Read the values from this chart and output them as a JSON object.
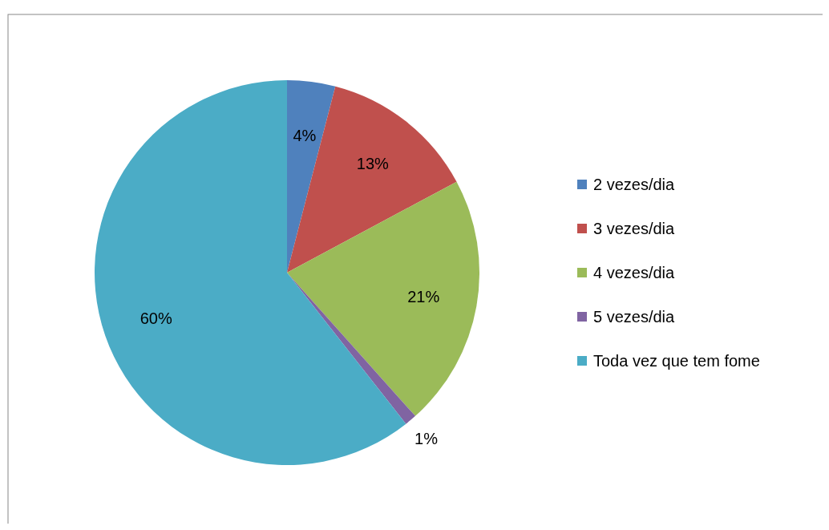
{
  "chart_data": {
    "type": "pie",
    "categories": [
      "2 vezes/dia",
      "3 vezes/dia",
      "4 vezes/dia",
      "5 vezes/dia",
      "Toda vez que tem fome"
    ],
    "values": [
      4,
      13,
      21,
      1,
      60
    ],
    "colors": [
      "#4f81bd",
      "#c0504d",
      "#9bbb59",
      "#8064a2",
      "#4bacc6"
    ],
    "value_labels": [
      "4%",
      "13%",
      "21%",
      "1%",
      "60%"
    ],
    "legend": "right"
  }
}
